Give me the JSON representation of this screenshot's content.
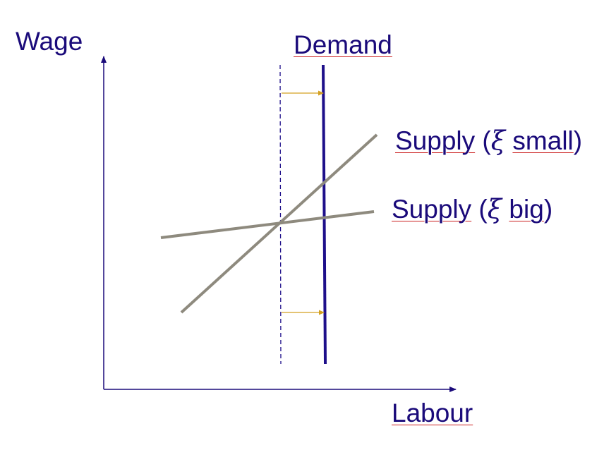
{
  "axes": {
    "y_label": "Wage",
    "x_label": "Labour"
  },
  "curves": {
    "demand": {
      "label": "Demand"
    },
    "supply_small": {
      "word": "Supply",
      "open": "(",
      "symbol": "ξ",
      "qualifier": "small",
      "close": ")"
    },
    "supply_big": {
      "word": "Supply",
      "open": "(",
      "symbol": "ξ",
      "qualifier": "big",
      "close": ")"
    }
  },
  "colors": {
    "text": "#1a0a7a",
    "axis": "#1a0a7a",
    "demand": "#1e0f8a",
    "supply": "#8e8a7e",
    "arrow": "#d4a020",
    "underline": "#cc2222"
  }
}
